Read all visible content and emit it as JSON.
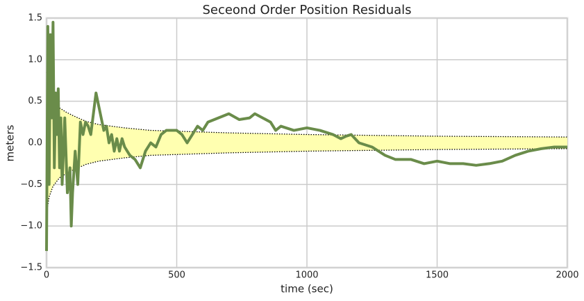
{
  "chart_data": {
    "type": "line",
    "title": "Seceond Order Position Residuals",
    "x_label": "time (sec)",
    "y_label": "meters",
    "xlim": [
      0,
      2000
    ],
    "ylim": [
      -1.5,
      1.5
    ],
    "xticks": [
      0,
      500,
      1000,
      1500,
      2000
    ],
    "yticks": [
      {
        "value": -1.5,
        "label": "−1.5"
      },
      {
        "value": -1,
        "label": "−1.0"
      },
      {
        "value": -0.5,
        "label": "−0.5"
      },
      {
        "value": 0,
        "label": "0.0"
      },
      {
        "value": 0.5,
        "label": "0.5"
      },
      {
        "value": 1,
        "label": "1.0"
      },
      {
        "value": 1.5,
        "label": "1.5"
      }
    ],
    "grid": true,
    "band_fill": "#ffffb0",
    "series": [
      {
        "color": "#6a8c4a",
        "style": "solid",
        "x": [
          0,
          5,
          10,
          15,
          20,
          25,
          30,
          35,
          40,
          45,
          50,
          55,
          60,
          70,
          80,
          90,
          95,
          100,
          110,
          120,
          130,
          140,
          150,
          160,
          170,
          180,
          190,
          200,
          210,
          220,
          230,
          240,
          250,
          260,
          270,
          280,
          290,
          300,
          320,
          340,
          360,
          380,
          400,
          420,
          440,
          460,
          500,
          520,
          540,
          560,
          580,
          600,
          620,
          660,
          700,
          740,
          780,
          800,
          830,
          860,
          880,
          900,
          950,
          1000,
          1050,
          1100,
          1130,
          1150,
          1170,
          1200,
          1250,
          1300,
          1340,
          1400,
          1450,
          1500,
          1550,
          1600,
          1650,
          1700,
          1750,
          1800,
          1850,
          1900,
          1950,
          2000
        ],
        "values": [
          -1.3,
          1.4,
          -0.5,
          1.3,
          0.3,
          1.45,
          -0.3,
          0.6,
          0.1,
          0.65,
          -0.3,
          0.3,
          -0.5,
          0.3,
          -0.6,
          -0.3,
          -1.0,
          -0.6,
          -0.1,
          -0.5,
          0.25,
          0.1,
          0.25,
          0.2,
          0.1,
          0.35,
          0.6,
          0.45,
          0.3,
          0.15,
          0.2,
          0.0,
          0.1,
          -0.1,
          0.05,
          -0.1,
          0.05,
          -0.05,
          -0.15,
          -0.2,
          -0.3,
          -0.1,
          0.0,
          -0.05,
          0.1,
          0.15,
          0.15,
          0.1,
          0.0,
          0.1,
          0.2,
          0.15,
          0.25,
          0.3,
          0.35,
          0.28,
          0.3,
          0.35,
          0.3,
          0.25,
          0.15,
          0.2,
          0.15,
          0.18,
          0.15,
          0.1,
          0.05,
          0.08,
          0.1,
          0.0,
          -0.05,
          -0.15,
          -0.2,
          -0.2,
          -0.25,
          -0.22,
          -0.25,
          -0.25,
          -0.27,
          -0.25,
          -0.22,
          -0.15,
          -0.1,
          -0.07,
          -0.05,
          -0.05
        ]
      },
      {
        "color": "#000000",
        "style": "dotted",
        "x": [
          0,
          10,
          25,
          50,
          75,
          100,
          150,
          200,
          300,
          400,
          500,
          700,
          1000,
          1500,
          2000
        ],
        "values": [
          0.85,
          0.65,
          0.52,
          0.42,
          0.37,
          0.33,
          0.26,
          0.22,
          0.18,
          0.15,
          0.14,
          0.12,
          0.1,
          0.08,
          0.07
        ]
      },
      {
        "color": "#000000",
        "style": "dotted",
        "x": [
          0,
          10,
          25,
          50,
          75,
          100,
          150,
          200,
          300,
          400,
          500,
          700,
          1000,
          1500,
          2000
        ],
        "values": [
          -0.85,
          -0.65,
          -0.52,
          -0.42,
          -0.37,
          -0.33,
          -0.26,
          -0.22,
          -0.18,
          -0.15,
          -0.14,
          -0.12,
          -0.1,
          -0.08,
          -0.07
        ]
      }
    ]
  }
}
